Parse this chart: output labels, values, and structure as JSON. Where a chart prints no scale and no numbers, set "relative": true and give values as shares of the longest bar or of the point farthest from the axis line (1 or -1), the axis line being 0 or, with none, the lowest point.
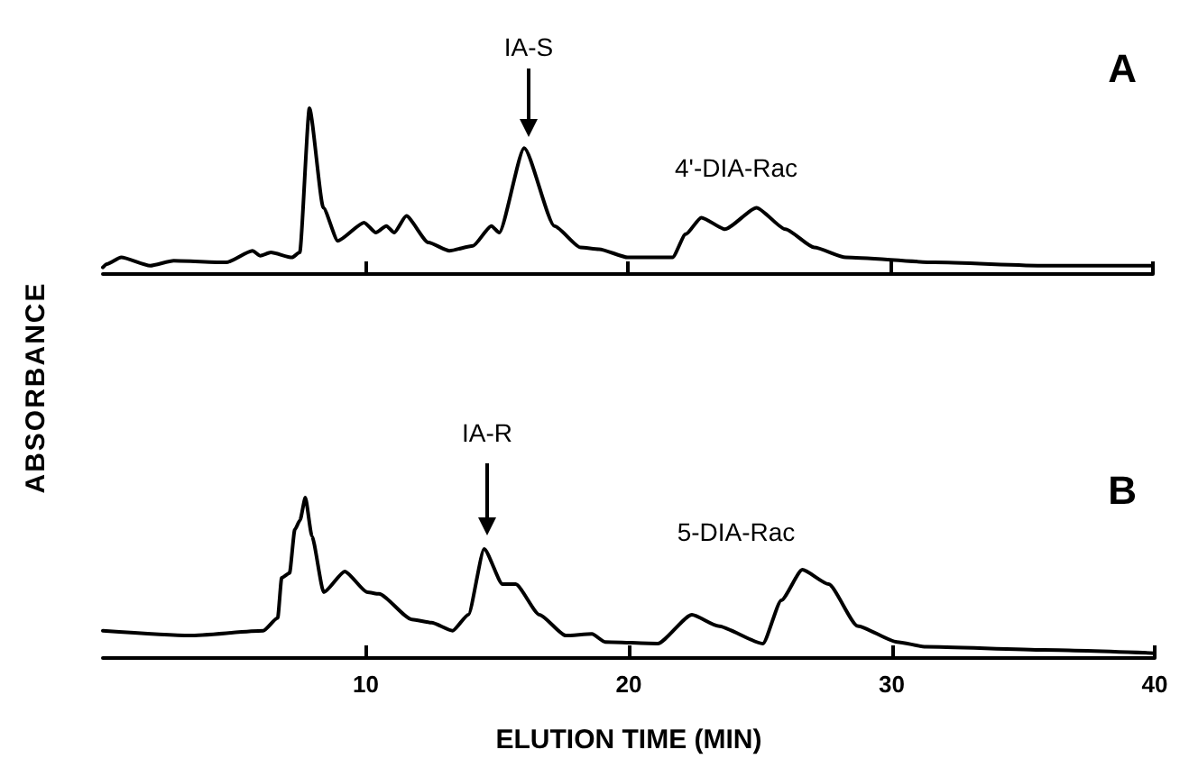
{
  "chart_data": [
    {
      "type": "line",
      "title": "A",
      "ylabel": "ABSORBANCE",
      "relative": true,
      "xlim": [
        0,
        40
      ],
      "xticks": [
        {
          "value": 10,
          "label": null
        },
        {
          "value": 20,
          "label": null
        },
        {
          "value": 30,
          "label": null
        },
        {
          "value": 40,
          "label": null
        }
      ],
      "tick_labels": false,
      "grid": false,
      "marker": "none",
      "line_style": "solid",
      "annotations": [
        "IA-S",
        "4'-DIA-Rac"
      ],
      "series": [
        {
          "color": "#000000",
          "x": [
            0,
            0.15,
            0.7,
            1.8,
            2.7,
            4.7,
            5.7,
            6.0,
            6.4,
            7.2,
            7.5,
            7.87,
            8.4,
            8.95,
            9.95,
            10.4,
            10.8,
            11.1,
            11.56,
            12.4,
            13.2,
            14.1,
            14.8,
            15.1,
            16.05,
            17.2,
            18.2,
            18.9,
            20,
            21.7,
            22.2,
            22.8,
            23.7,
            24.9,
            26,
            27.1,
            28.3,
            31.7,
            35.9,
            40
          ],
          "values": [
            0.04,
            0.06,
            0.1,
            0.05,
            0.08,
            0.07,
            0.14,
            0.11,
            0.13,
            0.1,
            0.13,
            1,
            0.4,
            0.2,
            0.31,
            0.25,
            0.29,
            0.25,
            0.35,
            0.19,
            0.14,
            0.17,
            0.29,
            0.25,
            0.76,
            0.29,
            0.16,
            0.15,
            0.1,
            0.1,
            0.24,
            0.34,
            0.27,
            0.4,
            0.27,
            0.16,
            0.1,
            0.07,
            0.05,
            0.05
          ]
        }
      ]
    },
    {
      "type": "line",
      "title": "B",
      "xlabel": "ELUTION TIME (MIN)",
      "relative": true,
      "xlim": [
        0,
        40
      ],
      "xticks": [
        10,
        20,
        30,
        40
      ],
      "tick_labels": "x",
      "grid": false,
      "marker": "none",
      "line_style": "solid",
      "annotations": [
        "IA-R",
        "5-DIA-Rac"
      ],
      "series": [
        {
          "color": "#000000",
          "x": [
            0,
            3.3,
            6.1,
            6.65,
            6.8,
            7.1,
            7.3,
            7.5,
            7.7,
            7.95,
            8.4,
            9.2,
            10.06,
            10.5,
            11.75,
            12.5,
            13.3,
            13.9,
            14.5,
            15.2,
            15.7,
            16.6,
            17.6,
            18.6,
            19.1,
            21.1,
            22.4,
            23.4,
            25.1,
            25.8,
            26.6,
            27.6,
            28.7,
            30.2,
            31.3,
            35.8,
            40
          ],
          "values": [
            0.17,
            0.14,
            0.17,
            0.25,
            0.5,
            0.53,
            0.8,
            0.86,
            1,
            0.76,
            0.41,
            0.54,
            0.41,
            0.4,
            0.24,
            0.22,
            0.17,
            0.27,
            0.68,
            0.46,
            0.46,
            0.27,
            0.14,
            0.15,
            0.1,
            0.09,
            0.27,
            0.2,
            0.09,
            0.36,
            0.55,
            0.46,
            0.2,
            0.1,
            0.07,
            0.05,
            0.03
          ]
        }
      ]
    }
  ]
}
